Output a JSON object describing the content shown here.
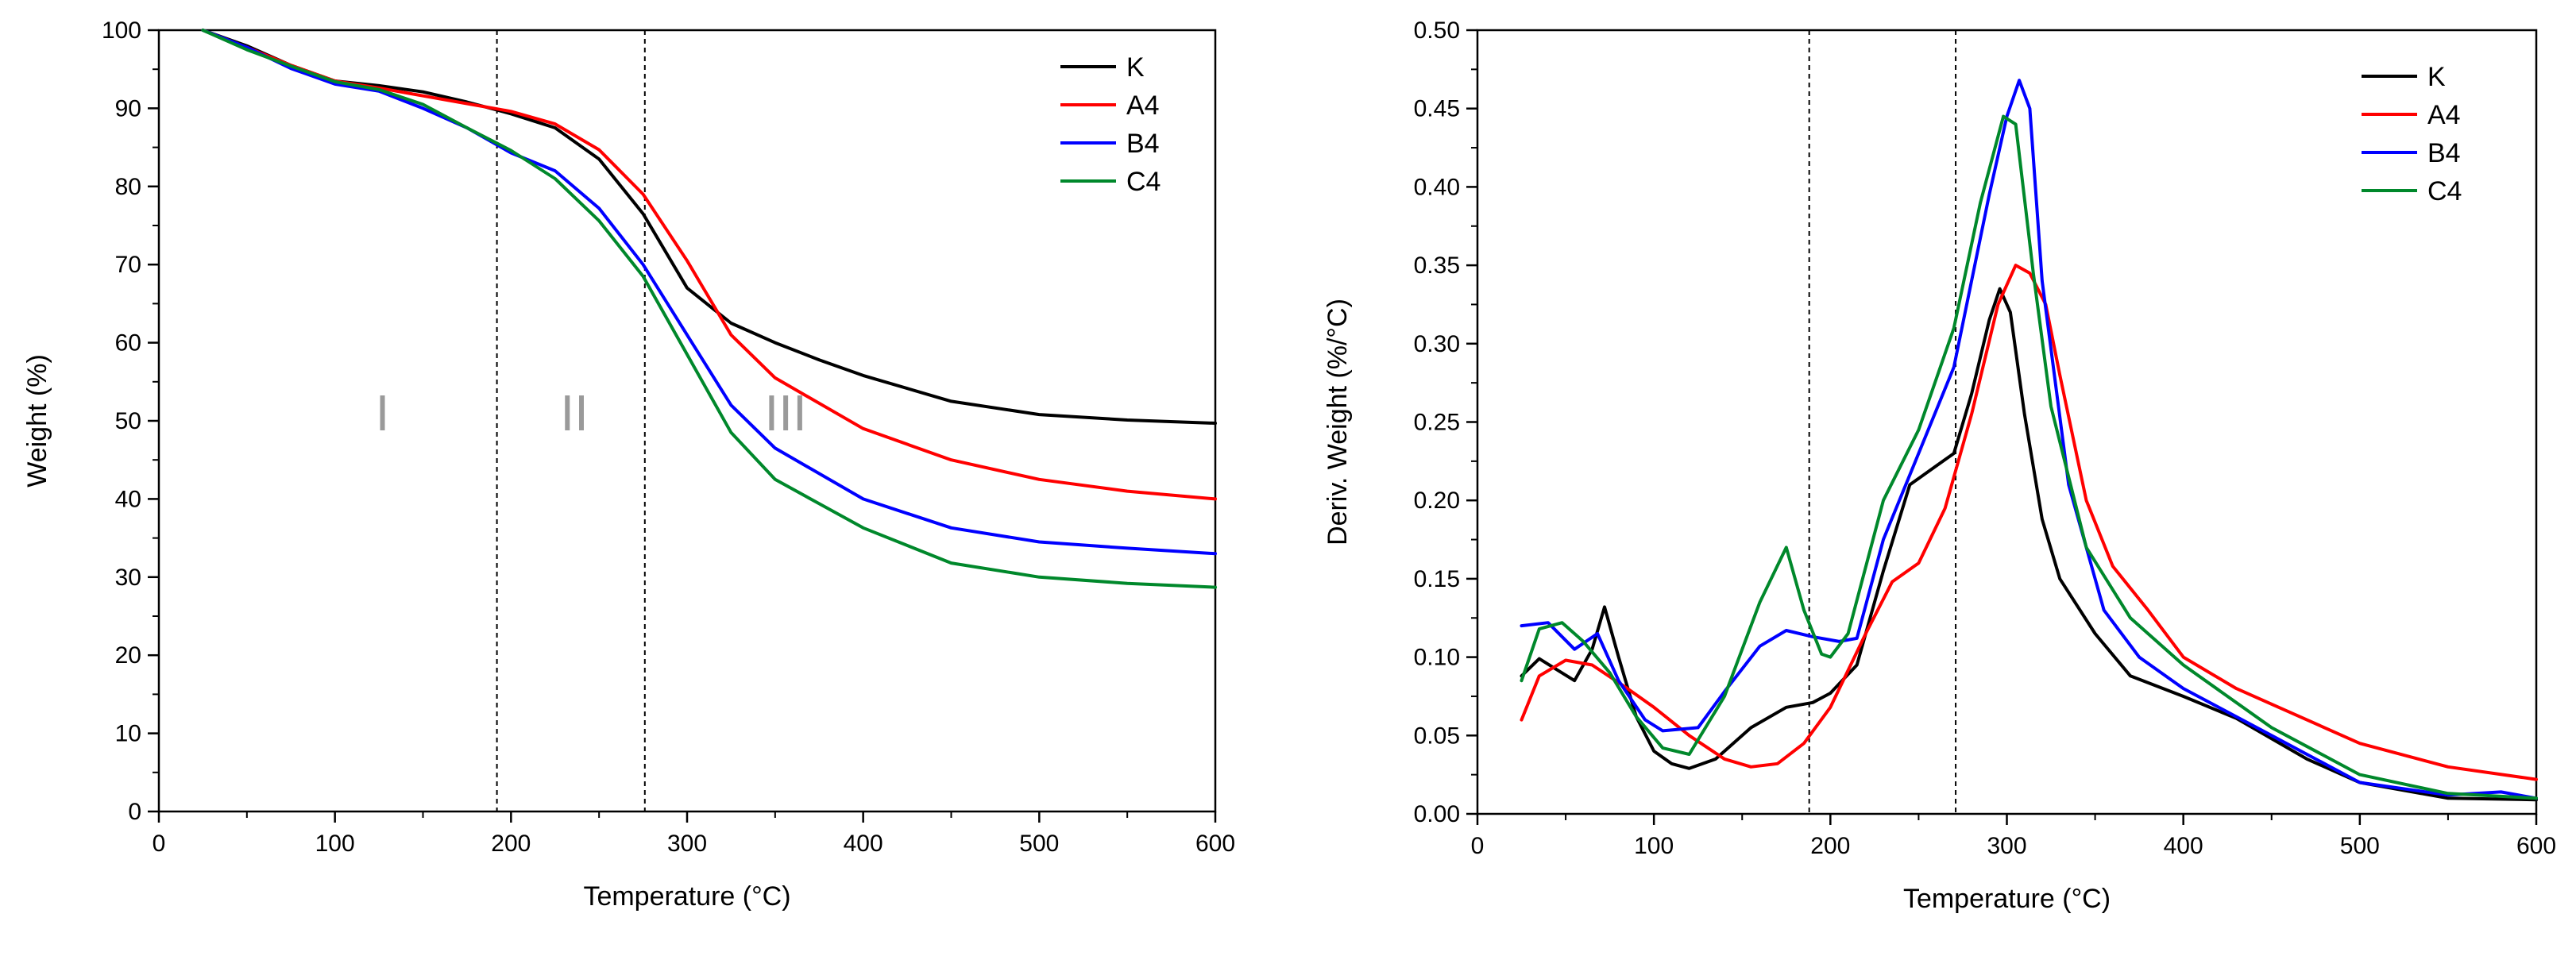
{
  "chart_data": [
    {
      "type": "line",
      "title": "",
      "xlabel": "Temperature (°C)",
      "ylabel": "Weight (%)",
      "xlim": [
        0,
        600
      ],
      "ylim": [
        0,
        100
      ],
      "xticks": [
        "0",
        "100",
        "200",
        "300",
        "400",
        "500",
        "600"
      ],
      "yticks": [
        "0",
        "10",
        "20",
        "30",
        "40",
        "50",
        "60",
        "70",
        "80",
        "90",
        "100"
      ],
      "grid": false,
      "legend": "top-right",
      "vlines": [
        192,
        276
      ],
      "region_labels": [
        {
          "text": "I",
          "x": 127,
          "y": 51
        },
        {
          "text": "II",
          "x": 236,
          "y": 51
        },
        {
          "text": "III",
          "x": 356,
          "y": 51
        }
      ],
      "series": [
        {
          "name": "K",
          "color": "#000000",
          "points": [
            [
              25,
              100
            ],
            [
              50,
              98
            ],
            [
              75,
              95.5
            ],
            [
              100,
              93.5
            ],
            [
              125,
              92.9
            ],
            [
              150,
              92.1
            ],
            [
              175,
              90.8
            ],
            [
              200,
              89.3
            ],
            [
              225,
              87.5
            ],
            [
              250,
              83.5
            ],
            [
              275,
              76.5
            ],
            [
              300,
              67
            ],
            [
              325,
              62.5
            ],
            [
              350,
              60
            ],
            [
              375,
              57.8
            ],
            [
              400,
              55.8
            ],
            [
              450,
              52.5
            ],
            [
              500,
              50.8
            ],
            [
              550,
              50.1
            ],
            [
              600,
              49.7
            ]
          ]
        },
        {
          "name": "A4",
          "color": "#ff0000",
          "points": [
            [
              25,
              100
            ],
            [
              50,
              97.8
            ],
            [
              75,
              95.5
            ],
            [
              100,
              93.5
            ],
            [
              125,
              92.6
            ],
            [
              150,
              91.6
            ],
            [
              175,
              90.6
            ],
            [
              200,
              89.6
            ],
            [
              225,
              88
            ],
            [
              250,
              84.7
            ],
            [
              275,
              79
            ],
            [
              300,
              70.5
            ],
            [
              325,
              61
            ],
            [
              350,
              55.5
            ],
            [
              400,
              49
            ],
            [
              450,
              45
            ],
            [
              500,
              42.5
            ],
            [
              550,
              41
            ],
            [
              600,
              40
            ]
          ]
        },
        {
          "name": "B4",
          "color": "#0000ff",
          "points": [
            [
              25,
              100
            ],
            [
              50,
              97.8
            ],
            [
              75,
              95.1
            ],
            [
              100,
              93.1
            ],
            [
              125,
              92.2
            ],
            [
              150,
              90
            ],
            [
              175,
              87.5
            ],
            [
              200,
              84.3
            ],
            [
              225,
              82
            ],
            [
              250,
              77.2
            ],
            [
              275,
              70
            ],
            [
              300,
              61
            ],
            [
              325,
              52
            ],
            [
              350,
              46.5
            ],
            [
              400,
              40
            ],
            [
              450,
              36.3
            ],
            [
              500,
              34.5
            ],
            [
              550,
              33.7
            ],
            [
              600,
              33
            ]
          ]
        },
        {
          "name": "C4",
          "color": "#00882b",
          "points": [
            [
              25,
              100
            ],
            [
              50,
              97.5
            ],
            [
              75,
              95.4
            ],
            [
              100,
              93.4
            ],
            [
              125,
              92.4
            ],
            [
              150,
              90.5
            ],
            [
              175,
              87.5
            ],
            [
              200,
              84.6
            ],
            [
              225,
              81
            ],
            [
              250,
              75.6
            ],
            [
              275,
              68.5
            ],
            [
              300,
              58.5
            ],
            [
              325,
              48.5
            ],
            [
              350,
              42.5
            ],
            [
              400,
              36.3
            ],
            [
              450,
              31.8
            ],
            [
              500,
              30
            ],
            [
              550,
              29.2
            ],
            [
              600,
              28.7
            ]
          ]
        }
      ]
    },
    {
      "type": "line",
      "title": "",
      "xlabel": "Temperature (°C)",
      "ylabel": "Deriv. Weight (%/°C)",
      "xlim": [
        0,
        600
      ],
      "ylim": [
        0,
        0.5
      ],
      "xticks": [
        "0",
        "100",
        "200",
        "300",
        "400",
        "500",
        "600"
      ],
      "yticks": [
        "0.00",
        "0.05",
        "0.10",
        "0.15",
        "0.20",
        "0.25",
        "0.30",
        "0.35",
        "0.40",
        "0.45",
        "0.50"
      ],
      "grid": false,
      "legend": "top-right",
      "vlines": [
        188,
        271
      ],
      "series": [
        {
          "name": "K",
          "color": "#000000",
          "points": [
            [
              25,
              0.088
            ],
            [
              35,
              0.099
            ],
            [
              45,
              0.092
            ],
            [
              55,
              0.085
            ],
            [
              65,
              0.105
            ],
            [
              72,
              0.132
            ],
            [
              80,
              0.1
            ],
            [
              90,
              0.062
            ],
            [
              100,
              0.04
            ],
            [
              110,
              0.032
            ],
            [
              120,
              0.029
            ],
            [
              135,
              0.035
            ],
            [
              155,
              0.055
            ],
            [
              175,
              0.068
            ],
            [
              190,
              0.071
            ],
            [
              200,
              0.077
            ],
            [
              215,
              0.095
            ],
            [
              230,
              0.155
            ],
            [
              245,
              0.21
            ],
            [
              260,
              0.222
            ],
            [
              270,
              0.23
            ],
            [
              280,
              0.268
            ],
            [
              290,
              0.315
            ],
            [
              296,
              0.335
            ],
            [
              302,
              0.32
            ],
            [
              310,
              0.255
            ],
            [
              320,
              0.188
            ],
            [
              330,
              0.15
            ],
            [
              350,
              0.115
            ],
            [
              370,
              0.088
            ],
            [
              400,
              0.075
            ],
            [
              430,
              0.061
            ],
            [
              470,
              0.035
            ],
            [
              500,
              0.02
            ],
            [
              550,
              0.01
            ],
            [
              600,
              0.009
            ]
          ]
        },
        {
          "name": "A4",
          "color": "#ff0000",
          "points": [
            [
              25,
              0.06
            ],
            [
              35,
              0.088
            ],
            [
              50,
              0.098
            ],
            [
              65,
              0.095
            ],
            [
              85,
              0.08
            ],
            [
              100,
              0.068
            ],
            [
              120,
              0.05
            ],
            [
              140,
              0.035
            ],
            [
              155,
              0.03
            ],
            [
              170,
              0.032
            ],
            [
              185,
              0.045
            ],
            [
              200,
              0.068
            ],
            [
              220,
              0.115
            ],
            [
              235,
              0.148
            ],
            [
              250,
              0.16
            ],
            [
              265,
              0.195
            ],
            [
              280,
              0.255
            ],
            [
              295,
              0.325
            ],
            [
              305,
              0.35
            ],
            [
              313,
              0.345
            ],
            [
              322,
              0.325
            ],
            [
              330,
              0.28
            ],
            [
              345,
              0.2
            ],
            [
              360,
              0.158
            ],
            [
              380,
              0.13
            ],
            [
              400,
              0.1
            ],
            [
              430,
              0.08
            ],
            [
              460,
              0.065
            ],
            [
              500,
              0.045
            ],
            [
              550,
              0.03
            ],
            [
              600,
              0.022
            ]
          ]
        },
        {
          "name": "B4",
          "color": "#0000ff",
          "points": [
            [
              25,
              0.12
            ],
            [
              40,
              0.122
            ],
            [
              55,
              0.105
            ],
            [
              68,
              0.115
            ],
            [
              80,
              0.085
            ],
            [
              95,
              0.06
            ],
            [
              105,
              0.053
            ],
            [
              125,
              0.055
            ],
            [
              140,
              0.078
            ],
            [
              160,
              0.107
            ],
            [
              175,
              0.117
            ],
            [
              190,
              0.113
            ],
            [
              205,
              0.11
            ],
            [
              215,
              0.112
            ],
            [
              230,
              0.175
            ],
            [
              250,
              0.23
            ],
            [
              270,
              0.285
            ],
            [
              290,
              0.395
            ],
            [
              300,
              0.445
            ],
            [
              307,
              0.468
            ],
            [
              313,
              0.45
            ],
            [
              320,
              0.34
            ],
            [
              335,
              0.21
            ],
            [
              355,
              0.13
            ],
            [
              375,
              0.1
            ],
            [
              400,
              0.08
            ],
            [
              450,
              0.05
            ],
            [
              500,
              0.02
            ],
            [
              550,
              0.012
            ],
            [
              580,
              0.014
            ],
            [
              600,
              0.01
            ]
          ]
        },
        {
          "name": "C4",
          "color": "#00882b",
          "points": [
            [
              25,
              0.085
            ],
            [
              35,
              0.118
            ],
            [
              48,
              0.122
            ],
            [
              60,
              0.11
            ],
            [
              75,
              0.09
            ],
            [
              90,
              0.062
            ],
            [
              105,
              0.042
            ],
            [
              120,
              0.038
            ],
            [
              140,
              0.075
            ],
            [
              160,
              0.135
            ],
            [
              175,
              0.17
            ],
            [
              185,
              0.13
            ],
            [
              195,
              0.102
            ],
            [
              200,
              0.1
            ],
            [
              210,
              0.115
            ],
            [
              230,
              0.2
            ],
            [
              250,
              0.245
            ],
            [
              270,
              0.31
            ],
            [
              285,
              0.39
            ],
            [
              298,
              0.445
            ],
            [
              305,
              0.44
            ],
            [
              315,
              0.345
            ],
            [
              325,
              0.26
            ],
            [
              345,
              0.17
            ],
            [
              370,
              0.125
            ],
            [
              400,
              0.095
            ],
            [
              450,
              0.055
            ],
            [
              500,
              0.025
            ],
            [
              550,
              0.013
            ],
            [
              600,
              0.01
            ]
          ]
        }
      ]
    }
  ]
}
